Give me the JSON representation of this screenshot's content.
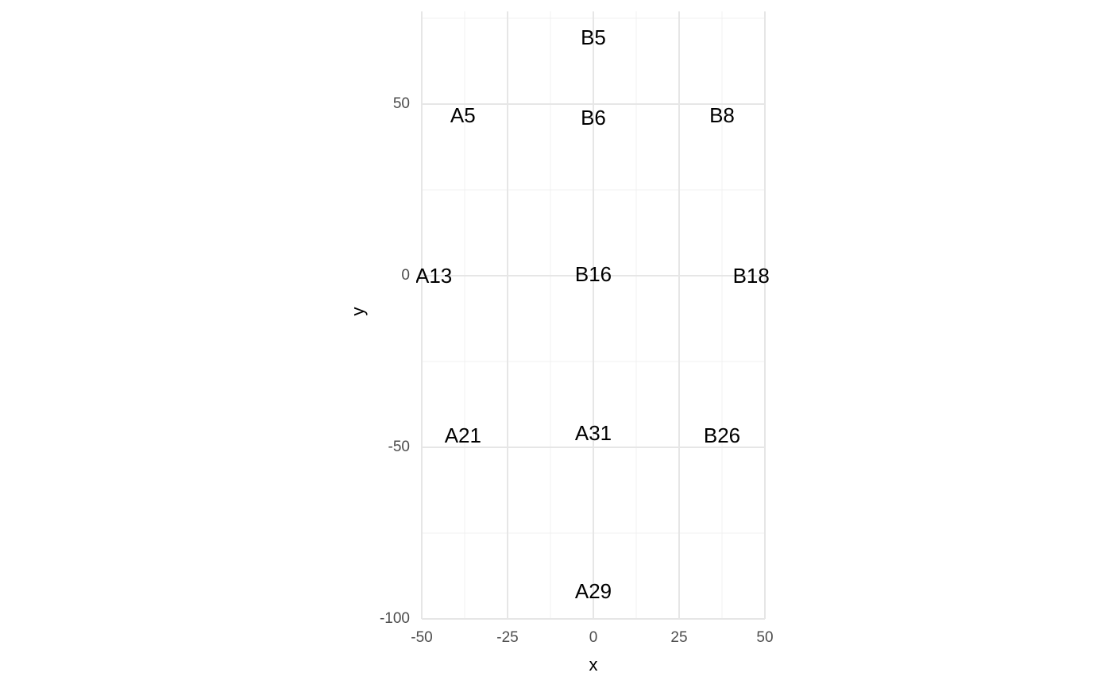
{
  "chart_data": {
    "type": "scatter",
    "x_label": "x",
    "y_label": "y",
    "labels": [
      "B5",
      "A5",
      "B6",
      "B8",
      "A13",
      "B16",
      "B18",
      "A21",
      "A31",
      "B26",
      "A29"
    ],
    "x": [
      0,
      -38,
      0,
      37.5,
      -46.5,
      0,
      46,
      -38,
      0,
      37.5,
      0
    ],
    "values": [
      69,
      46.3,
      45.6,
      46.3,
      -0.5,
      0,
      -0.5,
      -47,
      -46.3,
      -47,
      -92.4
    ],
    "xlim": [
      -50,
      50
    ],
    "ylim": [
      -100,
      77
    ],
    "xticks": [
      -50,
      -25,
      0,
      25,
      50
    ],
    "yticks": [
      -100,
      -50,
      0,
      50
    ],
    "grid": true,
    "color": "#000000"
  }
}
